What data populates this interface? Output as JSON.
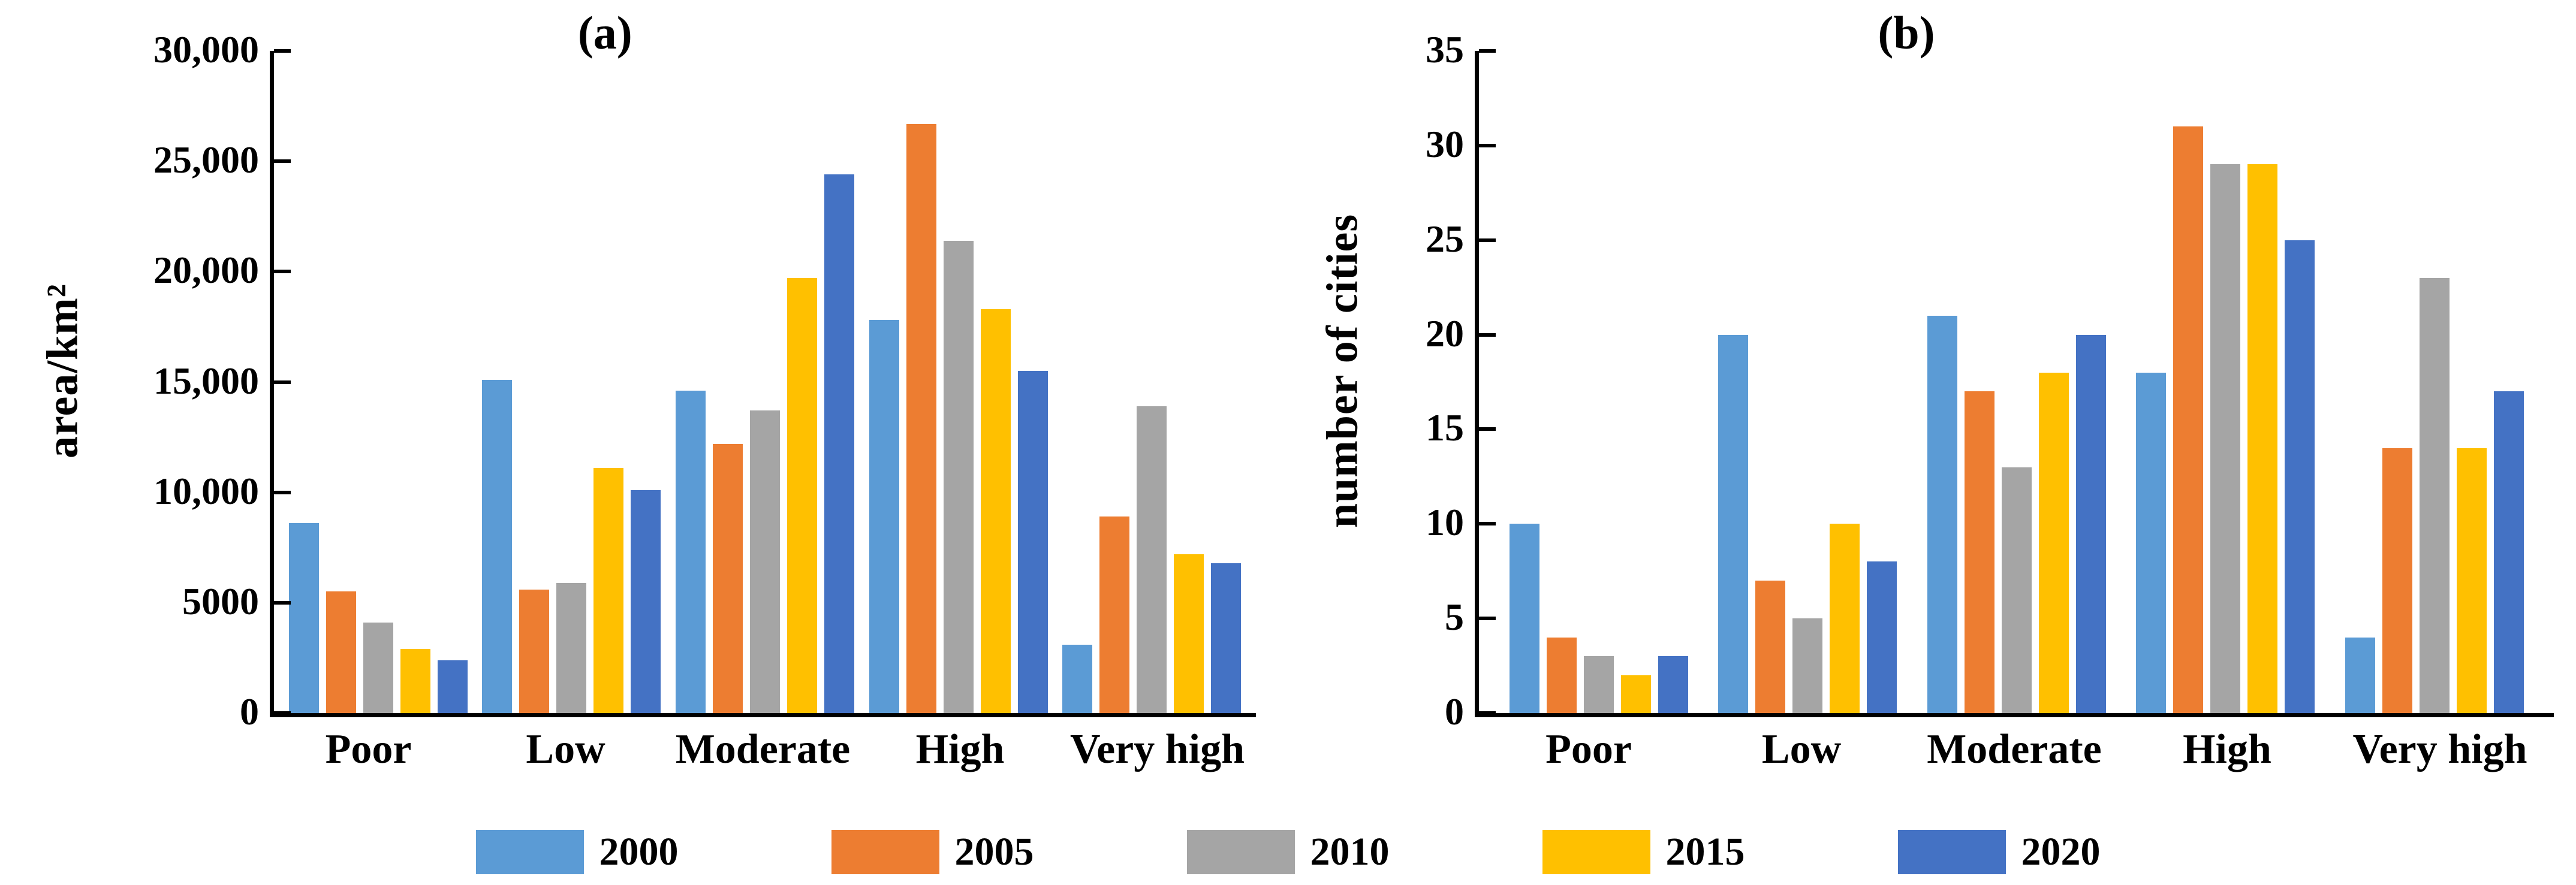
{
  "figure": {
    "background": "#ffffff",
    "axis_color": "#000000"
  },
  "legend": {
    "items": [
      {
        "label": "2000",
        "color": "#5B9BD5"
      },
      {
        "label": "2005",
        "color": "#ED7D31"
      },
      {
        "label": "2010",
        "color": "#A5A5A5"
      },
      {
        "label": "2015",
        "color": "#FFC000"
      },
      {
        "label": "2020",
        "color": "#4472C4"
      }
    ]
  },
  "chart_data": [
    {
      "id": "a",
      "type": "bar",
      "title": "(a)",
      "ylabel": "area/km²",
      "xlabel": "",
      "categories": [
        "Poor",
        "Low",
        "Moderate",
        "High",
        "Very high"
      ],
      "series": [
        {
          "name": "2000",
          "color": "#5B9BD5",
          "values": [
            8600,
            15100,
            14600,
            17800,
            3100
          ]
        },
        {
          "name": "2005",
          "color": "#ED7D31",
          "values": [
            5500,
            5600,
            12200,
            26700,
            8900
          ]
        },
        {
          "name": "2010",
          "color": "#A5A5A5",
          "values": [
            4100,
            5900,
            13700,
            21400,
            13900
          ]
        },
        {
          "name": "2015",
          "color": "#FFC000",
          "values": [
            2900,
            11100,
            19700,
            18300,
            7200
          ]
        },
        {
          "name": "2020",
          "color": "#4472C4",
          "values": [
            2400,
            10100,
            24400,
            15500,
            6800
          ]
        }
      ],
      "ylim": [
        0,
        30000
      ],
      "yticks": [
        {
          "value": 0,
          "label": "0"
        },
        {
          "value": 5000,
          "label": "5000"
        },
        {
          "value": 10000,
          "label": "10,000"
        },
        {
          "value": 15000,
          "label": "15,000"
        },
        {
          "value": 20000,
          "label": "20,000"
        },
        {
          "value": 25000,
          "label": "25,000"
        },
        {
          "value": 30000,
          "label": "30,000"
        }
      ],
      "grid": false,
      "legend_position": "bottom-shared"
    },
    {
      "id": "b",
      "type": "bar",
      "title": "(b)",
      "ylabel": "number of cities",
      "xlabel": "",
      "categories": [
        "Poor",
        "Low",
        "Moderate",
        "High",
        "Very high"
      ],
      "series": [
        {
          "name": "2000",
          "color": "#5B9BD5",
          "values": [
            10,
            20,
            21,
            18,
            4
          ]
        },
        {
          "name": "2005",
          "color": "#ED7D31",
          "values": [
            4,
            7,
            17,
            31,
            14
          ]
        },
        {
          "name": "2010",
          "color": "#A5A5A5",
          "values": [
            3,
            5,
            13,
            29,
            23
          ]
        },
        {
          "name": "2015",
          "color": "#FFC000",
          "values": [
            2,
            10,
            18,
            29,
            14
          ]
        },
        {
          "name": "2020",
          "color": "#4472C4",
          "values": [
            3,
            8,
            20,
            25,
            17
          ]
        }
      ],
      "ylim": [
        0,
        35
      ],
      "yticks": [
        {
          "value": 0,
          "label": "0"
        },
        {
          "value": 5,
          "label": "5"
        },
        {
          "value": 10,
          "label": "10"
        },
        {
          "value": 15,
          "label": "15"
        },
        {
          "value": 20,
          "label": "20"
        },
        {
          "value": 25,
          "label": "25"
        },
        {
          "value": 30,
          "label": "30"
        },
        {
          "value": 35,
          "label": "35"
        }
      ],
      "grid": false,
      "legend_position": "bottom-shared"
    }
  ]
}
